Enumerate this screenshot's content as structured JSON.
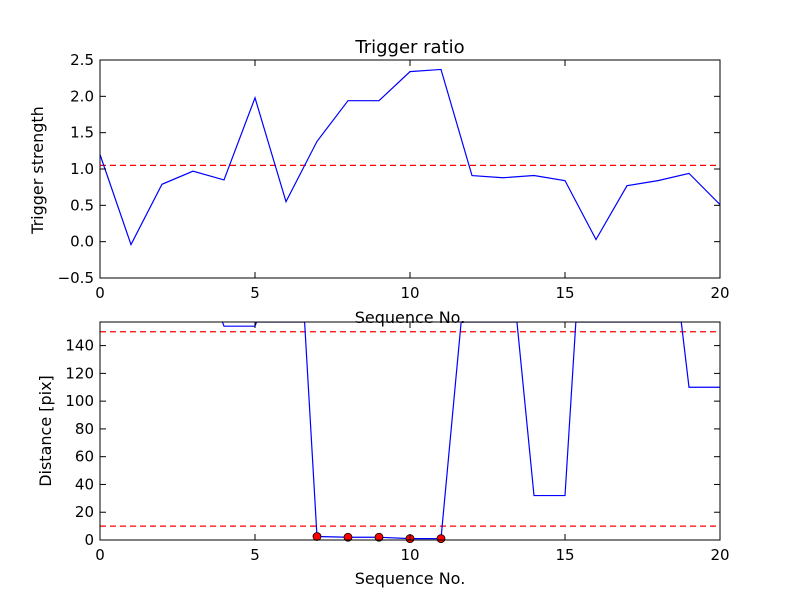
{
  "chart_data": [
    {
      "type": "line",
      "title": "Trigger ratio",
      "xlabel": "Sequence No.",
      "ylabel": "Trigger strength",
      "xlim": [
        0,
        20
      ],
      "ylim": [
        -0.5,
        2.5
      ],
      "xticks": [
        "0",
        "5",
        "10",
        "15",
        "20"
      ],
      "yticks": [
        "−0.5",
        "0.0",
        "0.5",
        "1.0",
        "1.5",
        "2.0",
        "2.5"
      ],
      "grid": false,
      "line_color": "#0000ff",
      "series": [
        {
          "x": [
            0,
            1,
            2,
            3,
            4,
            5,
            6,
            7,
            8,
            9,
            10,
            11,
            12,
            13,
            14,
            15,
            16,
            17,
            18,
            19,
            20
          ],
          "values": [
            1.2,
            -0.04,
            0.79,
            0.97,
            0.85,
            1.98,
            0.55,
            1.38,
            1.94,
            1.94,
            2.34,
            2.37,
            0.91,
            0.88,
            0.91,
            0.84,
            0.03,
            0.77,
            0.84,
            0.94,
            0.51
          ]
        }
      ],
      "threshold": {
        "y": 1.05,
        "style": "dashed",
        "color": "#ff0000"
      }
    },
    {
      "type": "line",
      "title": "",
      "xlabel": "Sequence No.",
      "ylabel": "Distance [pix]",
      "xlim": [
        0,
        20
      ],
      "ylim": [
        0,
        157
      ],
      "xticks": [
        "0",
        "5",
        "10",
        "15",
        "20"
      ],
      "yticks": [
        "0",
        "20",
        "40",
        "60",
        "80",
        "100",
        "120",
        "140"
      ],
      "grid": false,
      "line_color": "#0000ff",
      "marker_color": "#ff0000",
      "series": [
        {
          "x": [
            3.95,
            4,
            5,
            5.05,
            6.6,
            7,
            8,
            9,
            10,
            11,
            11.65,
            13.45,
            14,
            15,
            15.35,
            18.75,
            19,
            20
          ],
          "values": [
            157,
            154,
            154,
            157,
            157,
            2.5,
            2,
            2,
            1,
            1,
            157,
            157,
            32,
            32,
            157,
            157,
            110,
            110
          ]
        }
      ],
      "markers": [
        {
          "x": 7,
          "y": 2.5
        },
        {
          "x": 8,
          "y": 2
        },
        {
          "x": 9,
          "y": 2
        },
        {
          "x": 10,
          "y": 1
        },
        {
          "x": 11,
          "y": 1
        }
      ],
      "thresholds": [
        {
          "y": 150,
          "style": "dashed",
          "color": "#ff0000"
        },
        {
          "y": 10,
          "style": "dashed",
          "color": "#ff0000"
        }
      ]
    }
  ]
}
